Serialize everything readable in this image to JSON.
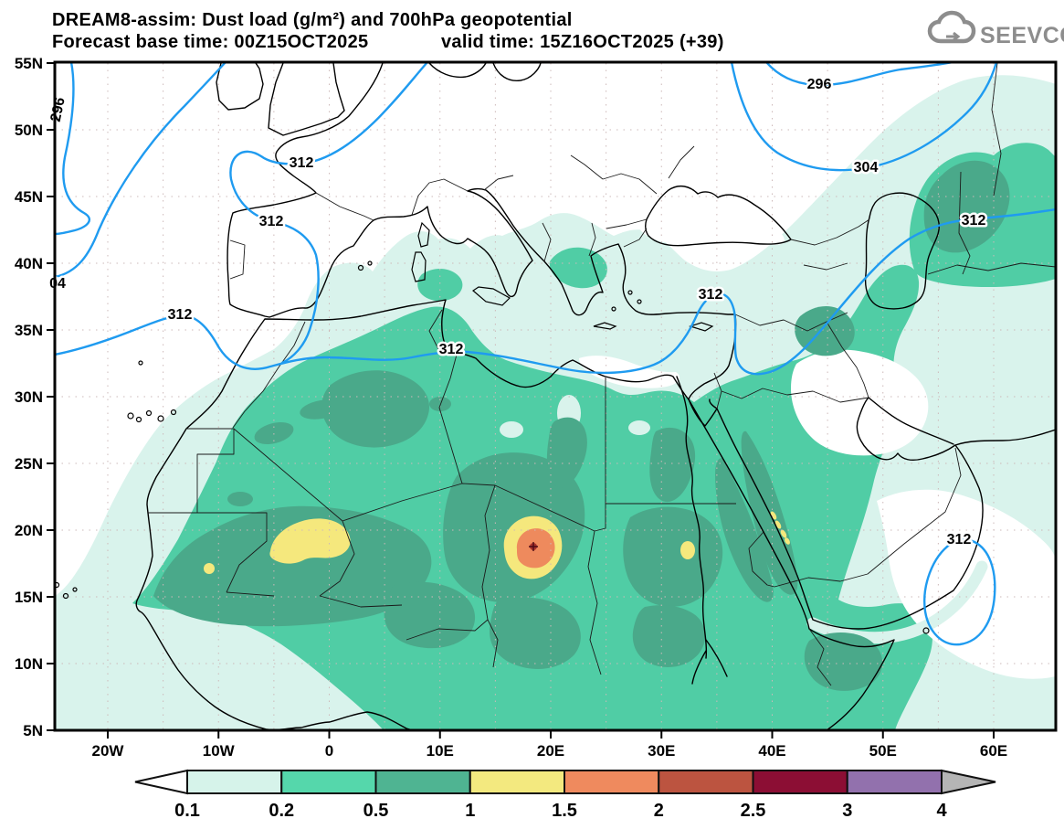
{
  "header": {
    "title": "DREAM8-assim: Dust load (g/m²) and 700hPa geopotential",
    "subtitle_left": "Forecast base time: 00Z15OCT2025",
    "subtitle_right": "valid time: 15Z16OCT2025 (+39)"
  },
  "logo": {
    "text": "SEEVCCC"
  },
  "axes": {
    "lat_labels": [
      "55N",
      "50N",
      "45N",
      "40N",
      "35N",
      "30N",
      "25N",
      "20N",
      "15N",
      "10N",
      "5N"
    ],
    "lon_labels": [
      "20W",
      "10W",
      "0",
      "10E",
      "20E",
      "30E",
      "40E",
      "50E",
      "60E"
    ]
  },
  "contours": {
    "field": "700hPa geopotential",
    "line_color": "#1f9bf0",
    "labels": {
      "west_296": "296",
      "north_296": "296",
      "west_304": "04",
      "east_304": "304",
      "france_312": "312",
      "spain_312": "312",
      "atlantic_312": "312",
      "med_312": "312",
      "levant_312": "312",
      "caspian_312": "312",
      "arabian_sea_312": "312"
    }
  },
  "dust": {
    "unit": "g/m²",
    "levels": [
      0.1,
      0.2,
      0.5,
      1,
      1.5,
      2,
      2.5,
      3,
      4
    ],
    "fill_colors": {
      "white": "#ffffff",
      "lvl_01": "#d9f3ec",
      "lvl_02": "#50cda5",
      "lvl_05": "#4aa98a",
      "lvl_1": "#f5e87d",
      "lvl_15": "#ee8a5d",
      "lvl_25": "#a8332c",
      "cross": "#4a0b16"
    }
  },
  "colorbar": {
    "labels": [
      "0.1",
      "0.2",
      "0.5",
      "1",
      "1.5",
      "2",
      "2.5",
      "3",
      "4"
    ],
    "cell_colors": [
      "#d6f3ea",
      "#55d7ab",
      "#4fb492",
      "#f3e97f",
      "#ef8a5e",
      "#bc5440",
      "#8c0e34",
      "#9271ad"
    ],
    "below_color": "#ffffff",
    "above_color": "#b5b5b5"
  }
}
